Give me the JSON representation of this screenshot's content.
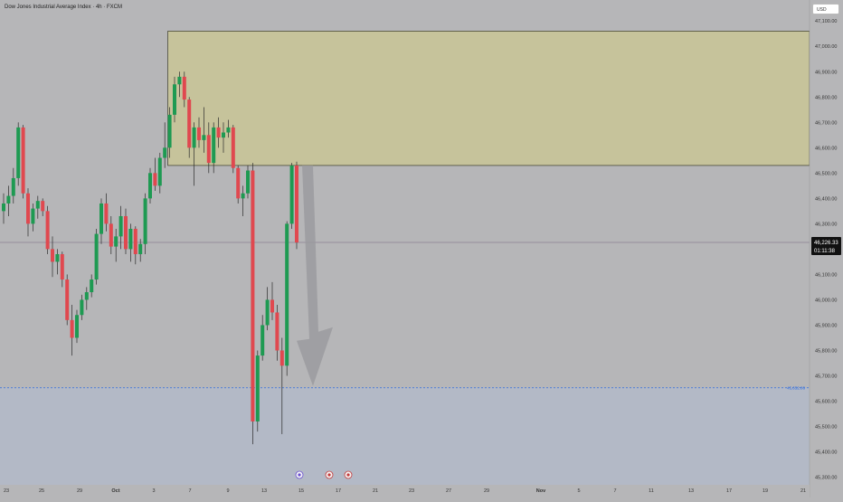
{
  "chart_title": "Dow Jones Industrial Average Index · 4h · FXCM",
  "currency_label": "USD",
  "current_price_label": "46,226.33",
  "countdown_label": "01:11:38",
  "target_price_label": "45,652.86",
  "colors": {
    "background": "#b6b6b8",
    "lower_zone": "#b3b9c6",
    "supply_zone": "#c6c39b",
    "up_candle": "#1e9a52",
    "down_candle": "#e0484f",
    "wick": "#2b2b2b",
    "target_line": "#2f6de0",
    "price_tag_bg": "#111111"
  },
  "chart_data": {
    "type": "candlestick",
    "title": "Dow Jones Industrial Average Index · 4h · FXCM",
    "ylim": [
      45270,
      47140
    ],
    "y_ticks": [
      47100,
      47000,
      46900,
      46800,
      46700,
      46600,
      46500,
      46400,
      46300,
      46200,
      46100,
      46000,
      45900,
      45800,
      45700,
      45600,
      45500,
      45400,
      45300
    ],
    "y_tick_labels": [
      "47,100.00",
      "47,000.00",
      "46,900.00",
      "46,800.00",
      "46,700.00",
      "46,600.00",
      "46,500.00",
      "46,400.00",
      "46,300.00",
      "46,200.00",
      "46,100.00",
      "46,000.00",
      "45,900.00",
      "45,800.00",
      "45,700.00",
      "45,600.00",
      "45,500.00",
      "45,400.00",
      "45,300.00"
    ],
    "x_tick_labels": [
      "23",
      "25",
      "29",
      "Oct",
      "3",
      "7",
      "9",
      "13",
      "15",
      "17",
      "21",
      "23",
      "27",
      "29",
      "Nov",
      "5",
      "7",
      "11",
      "13",
      "17",
      "19",
      "21"
    ],
    "current_price": 46226.33,
    "target_price": 45652.86,
    "supply_zone": {
      "low": 46530,
      "high": 47060,
      "start_candle": 34
    },
    "projection_arrow": {
      "from": 46530,
      "to": 45660
    },
    "candles": [
      [
        46350,
        46420,
        46300,
        46380
      ],
      [
        46380,
        46450,
        46330,
        46410
      ],
      [
        46410,
        46520,
        46380,
        46480
      ],
      [
        46480,
        46700,
        46450,
        46680
      ],
      [
        46680,
        46690,
        46400,
        46420
      ],
      [
        46420,
        46440,
        46250,
        46300
      ],
      [
        46300,
        46380,
        46270,
        46360
      ],
      [
        46360,
        46410,
        46320,
        46390
      ],
      [
        46390,
        46400,
        46330,
        46350
      ],
      [
        46350,
        46370,
        46180,
        46200
      ],
      [
        46200,
        46250,
        46090,
        46150
      ],
      [
        46150,
        46200,
        46100,
        46180
      ],
      [
        46180,
        46190,
        46050,
        46080
      ],
      [
        46080,
        46100,
        45900,
        45920
      ],
      [
        45920,
        45980,
        45780,
        45850
      ],
      [
        45850,
        45960,
        45830,
        45940
      ],
      [
        45940,
        46020,
        45920,
        46000
      ],
      [
        46000,
        46050,
        45960,
        46030
      ],
      [
        46030,
        46100,
        46010,
        46080
      ],
      [
        46080,
        46280,
        46060,
        46260
      ],
      [
        46260,
        46400,
        46220,
        46380
      ],
      [
        46380,
        46420,
        46270,
        46300
      ],
      [
        46300,
        46330,
        46180,
        46210
      ],
      [
        46210,
        46280,
        46150,
        46250
      ],
      [
        46250,
        46370,
        46200,
        46330
      ],
      [
        46330,
        46360,
        46180,
        46200
      ],
      [
        46200,
        46300,
        46150,
        46280
      ],
      [
        46280,
        46290,
        46140,
        46180
      ],
      [
        46180,
        46240,
        46150,
        46220
      ],
      [
        46220,
        46420,
        46180,
        46400
      ],
      [
        46400,
        46520,
        46380,
        46500
      ],
      [
        46500,
        46560,
        46430,
        46450
      ],
      [
        46450,
        46580,
        46420,
        46560
      ],
      [
        46560,
        46700,
        46520,
        46600
      ],
      [
        46600,
        46760,
        46560,
        46730
      ],
      [
        46730,
        46880,
        46700,
        46850
      ],
      [
        46850,
        46900,
        46800,
        46880
      ],
      [
        46880,
        46900,
        46760,
        46790
      ],
      [
        46790,
        46800,
        46560,
        46600
      ],
      [
        46600,
        46700,
        46450,
        46680
      ],
      [
        46680,
        46720,
        46600,
        46630
      ],
      [
        46630,
        46760,
        46580,
        46650
      ],
      [
        46650,
        46700,
        46500,
        46540
      ],
      [
        46540,
        46700,
        46500,
        46680
      ],
      [
        46680,
        46720,
        46600,
        46640
      ],
      [
        46640,
        46700,
        46580,
        46660
      ],
      [
        46660,
        46710,
        46640,
        46680
      ],
      [
        46680,
        46690,
        46500,
        46520
      ],
      [
        46520,
        46530,
        46380,
        46400
      ],
      [
        46400,
        46450,
        46330,
        46420
      ],
      [
        46420,
        46530,
        46400,
        46510
      ],
      [
        46510,
        46540,
        45430,
        45520
      ],
      [
        45520,
        45800,
        45480,
        45780
      ],
      [
        45780,
        45940,
        45760,
        45900
      ],
      [
        45900,
        46050,
        45880,
        46000
      ],
      [
        46000,
        46070,
        45920,
        45950
      ],
      [
        45950,
        45980,
        45760,
        45800
      ],
      [
        45800,
        45850,
        45470,
        45740
      ],
      [
        45740,
        46310,
        45700,
        46300
      ],
      [
        46300,
        46540,
        46280,
        46530
      ],
      [
        46530,
        46545,
        46200,
        46226
      ]
    ]
  }
}
